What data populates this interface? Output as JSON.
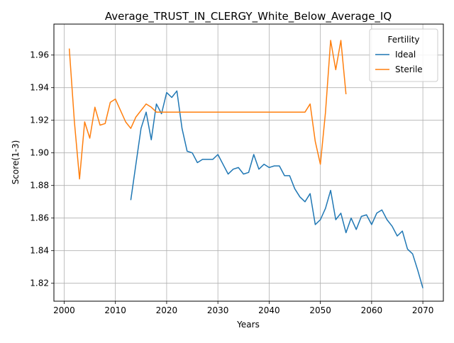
{
  "chart_data": {
    "type": "line",
    "title": "Average_TRUST_IN_CLERGY_White_Below_Average_IQ",
    "xlabel": "Years",
    "ylabel": "Score(1-3)",
    "xlim": [
      1998,
      2074
    ],
    "ylim": [
      1.809,
      1.979
    ],
    "xticks": [
      2000,
      2010,
      2020,
      2030,
      2040,
      2050,
      2060,
      2070
    ],
    "yticks": [
      1.82,
      1.84,
      1.86,
      1.88,
      1.9,
      1.92,
      1.94,
      1.96
    ],
    "grid": true,
    "legend": {
      "title": "Fertility",
      "placement": "top-right"
    },
    "series": [
      {
        "name": "Ideal",
        "color": "#1f77b4",
        "x": [
          2013,
          2014,
          2015,
          2016,
          2017,
          2018,
          2019,
          2020,
          2021,
          2022,
          2023,
          2024,
          2025,
          2026,
          2027,
          2028,
          2029,
          2030,
          2031,
          2032,
          2033,
          2034,
          2035,
          2036,
          2037,
          2038,
          2039,
          2040,
          2041,
          2042,
          2043,
          2044,
          2045,
          2046,
          2047,
          2048,
          2049,
          2050,
          2051,
          2052,
          2053,
          2054,
          2055,
          2056,
          2057,
          2058,
          2059,
          2060,
          2061,
          2062,
          2063,
          2064,
          2065,
          2066,
          2067,
          2068,
          2069,
          2070
        ],
        "y": [
          1.871,
          1.893,
          1.915,
          1.925,
          1.908,
          1.93,
          1.924,
          1.937,
          1.934,
          1.938,
          1.915,
          1.901,
          1.9,
          1.894,
          1.896,
          1.896,
          1.896,
          1.899,
          1.893,
          1.887,
          1.89,
          1.891,
          1.887,
          1.888,
          1.899,
          1.89,
          1.893,
          1.891,
          1.892,
          1.892,
          1.886,
          1.886,
          1.878,
          1.873,
          1.87,
          1.875,
          1.856,
          1.859,
          1.866,
          1.877,
          1.859,
          1.863,
          1.851,
          1.86,
          1.853,
          1.861,
          1.862,
          1.856,
          1.863,
          1.865,
          1.859,
          1.855,
          1.849,
          1.852,
          1.841,
          1.838,
          1.828,
          1.817
        ]
      },
      {
        "name": "Sterile",
        "color": "#ff7f0e",
        "x": [
          2001,
          2002,
          2003,
          2004,
          2005,
          2006,
          2007,
          2008,
          2009,
          2010,
          2011,
          2012,
          2013,
          2014,
          2015,
          2016,
          2017,
          2018,
          2019,
          2020,
          2021,
          2022,
          2023,
          2024,
          2025,
          2026,
          2027,
          2028,
          2029,
          2030,
          2031,
          2032,
          2033,
          2034,
          2035,
          2036,
          2037,
          2038,
          2039,
          2040,
          2041,
          2042,
          2043,
          2044,
          2045,
          2046,
          2047,
          2048,
          2049,
          2050,
          2051,
          2052,
          2053,
          2054,
          2055
        ],
        "y": [
          1.964,
          1.919,
          1.884,
          1.919,
          1.909,
          1.928,
          1.917,
          1.918,
          1.931,
          1.933,
          1.926,
          1.919,
          1.915,
          1.922,
          1.926,
          1.93,
          1.928,
          1.925,
          1.925,
          1.925,
          1.925,
          1.925,
          1.925,
          1.925,
          1.925,
          1.925,
          1.925,
          1.925,
          1.925,
          1.925,
          1.925,
          1.925,
          1.925,
          1.925,
          1.925,
          1.925,
          1.925,
          1.925,
          1.925,
          1.925,
          1.925,
          1.925,
          1.925,
          1.925,
          1.925,
          1.925,
          1.925,
          1.93,
          1.907,
          1.893,
          1.925,
          1.969,
          1.951,
          1.969,
          1.936
        ]
      }
    ]
  }
}
